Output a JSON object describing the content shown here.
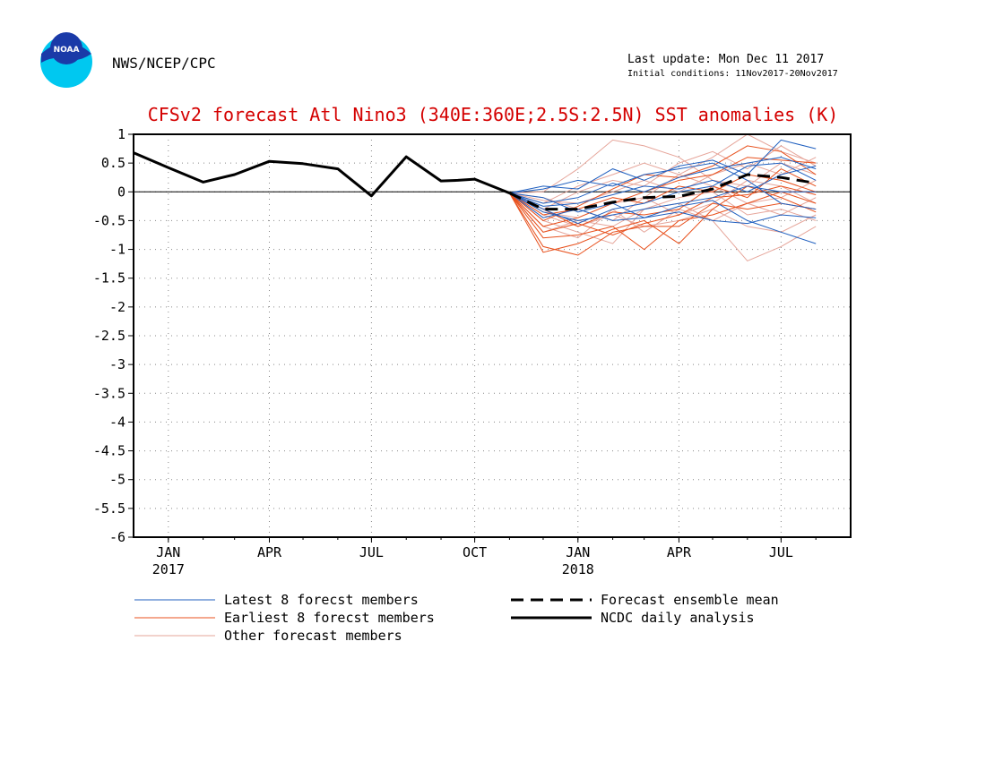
{
  "header": {
    "agency": "NWS/NCEP/CPC",
    "logo_text": "NOAA",
    "last_update": "Last update: Mon Dec 11 2017",
    "initial_conditions": "Initial conditions: 11Nov2017-20Nov2017"
  },
  "colors": {
    "title": "#d40000",
    "latest": "#1f5fbf",
    "earliest": "#e8501c",
    "other": "#e6a59a",
    "analysis": "#000000",
    "logo_blue": "#1a3aa8",
    "logo_cyan": "#00c8f0"
  },
  "chart_data": {
    "type": "line",
    "title": "CFSv2 forecast Atl Nino3 (340E:360E;2.5S:2.5N) SST anomalies (K)",
    "ylim": [
      -6,
      1
    ],
    "yticks": [
      1,
      0.5,
      0,
      -0.5,
      -1,
      -1.5,
      -2,
      -2.5,
      -3,
      -3.5,
      -4,
      -4.5,
      -5,
      -5.5,
      -6
    ],
    "ytick_labels": [
      "1",
      "0.5",
      "0",
      "-0.5",
      "-1",
      "-1.5",
      "-2",
      "-2.5",
      "-3",
      "-3.5",
      "-4",
      "-4.5",
      "-5",
      "-5.5",
      "-6"
    ],
    "xlim": [
      "2016-12-01",
      "2018-09-01"
    ],
    "xticks": [
      {
        "date": "2017-01-01",
        "label": "JAN",
        "sublabel": "2017"
      },
      {
        "date": "2017-04-01",
        "label": "APR",
        "sublabel": ""
      },
      {
        "date": "2017-07-01",
        "label": "JUL",
        "sublabel": ""
      },
      {
        "date": "2017-10-01",
        "label": "OCT",
        "sublabel": ""
      },
      {
        "date": "2018-01-01",
        "label": "JAN",
        "sublabel": "2018"
      },
      {
        "date": "2018-04-01",
        "label": "APR",
        "sublabel": ""
      },
      {
        "date": "2018-07-01",
        "label": "JUL",
        "sublabel": ""
      }
    ],
    "grid": true,
    "series": [
      {
        "name": "NCDC daily analysis",
        "style": "solid-thick",
        "color": "#000000",
        "x": [
          "2016-12-01",
          "2017-01-01",
          "2017-02-01",
          "2017-03-01",
          "2017-04-01",
          "2017-05-01",
          "2017-06-01",
          "2017-07-01",
          "2017-08-01",
          "2017-09-01",
          "2017-09-16",
          "2017-10-01",
          "2017-11-01"
        ],
        "y": [
          0.68,
          0.42,
          0.17,
          0.3,
          0.53,
          0.49,
          0.4,
          -0.07,
          0.61,
          0.19,
          0.2,
          0.22,
          -0.02
        ]
      },
      {
        "name": "Forecast ensemble mean",
        "style": "dashed-thick",
        "color": "#000000",
        "x": [
          "2017-11-01",
          "2017-12-01",
          "2018-01-01",
          "2018-02-01",
          "2018-03-01",
          "2018-04-01",
          "2018-05-01",
          "2018-06-01",
          "2018-07-01",
          "2018-08-01"
        ],
        "y": [
          -0.02,
          -0.3,
          -0.3,
          -0.18,
          -0.1,
          -0.08,
          0.05,
          0.3,
          0.25,
          0.15
        ]
      },
      {
        "name": "Latest 8 forecst members",
        "group": "latest",
        "color": "#1f5fbf",
        "x": [
          "2017-11-01",
          "2017-12-01",
          "2018-01-01",
          "2018-02-01",
          "2018-03-01",
          "2018-04-01",
          "2018-05-01",
          "2018-06-01",
          "2018-07-01",
          "2018-08-01"
        ],
        "members": [
          [
            -0.02,
            0.1,
            0.05,
            0.4,
            0.2,
            0.45,
            0.55,
            0.3,
            0.9,
            0.75
          ],
          [
            -0.02,
            -0.2,
            -0.1,
            0.15,
            0.0,
            0.25,
            0.4,
            0.5,
            0.6,
            0.4
          ],
          [
            -0.02,
            -0.35,
            -0.5,
            -0.4,
            -0.3,
            -0.2,
            -0.1,
            0.1,
            0.0,
            0.0
          ],
          [
            -0.02,
            -0.45,
            -0.3,
            -0.5,
            -0.45,
            -0.35,
            -0.5,
            -0.55,
            -0.4,
            -0.45
          ],
          [
            -0.02,
            -0.25,
            -0.2,
            -0.05,
            0.1,
            0.05,
            0.2,
            0.0,
            0.3,
            0.45
          ],
          [
            -0.02,
            -0.1,
            -0.35,
            -0.2,
            -0.45,
            -0.25,
            -0.15,
            -0.5,
            -0.7,
            -0.9
          ],
          [
            -0.02,
            -0.3,
            -0.55,
            -0.3,
            -0.2,
            0.0,
            0.1,
            0.45,
            0.5,
            0.2
          ],
          [
            -0.02,
            0.05,
            0.2,
            0.1,
            0.3,
            0.4,
            0.5,
            0.2,
            -0.2,
            -0.3
          ]
        ]
      },
      {
        "name": "Earliest 8 forecst members",
        "group": "earliest",
        "color": "#e8501c",
        "x": [
          "2017-11-01",
          "2017-12-01",
          "2018-01-01",
          "2018-02-01",
          "2018-03-01",
          "2018-04-01",
          "2018-05-01",
          "2018-06-01",
          "2018-07-01",
          "2018-08-01"
        ],
        "members": [
          [
            -0.02,
            -1.05,
            -0.9,
            -0.65,
            -0.5,
            -0.9,
            -0.3,
            0.1,
            -0.1,
            -0.35
          ],
          [
            -0.02,
            -0.8,
            -0.75,
            -0.6,
            -1.0,
            -0.5,
            -0.4,
            -0.2,
            0.0,
            -0.2
          ],
          [
            -0.02,
            -0.6,
            -0.45,
            -0.2,
            0.0,
            0.2,
            0.3,
            0.6,
            0.55,
            0.5
          ],
          [
            -0.02,
            -0.4,
            -0.3,
            -0.1,
            -0.2,
            0.1,
            0.0,
            0.3,
            0.2,
            0.0
          ],
          [
            -0.02,
            -0.7,
            -0.55,
            -0.75,
            -0.55,
            -0.4,
            -0.1,
            -0.05,
            0.1,
            -0.05
          ],
          [
            -0.02,
            -0.95,
            -1.1,
            -0.7,
            -0.6,
            -0.6,
            -0.2,
            -0.3,
            -0.2,
            -0.3
          ],
          [
            -0.02,
            -0.5,
            -0.25,
            0.05,
            0.3,
            0.25,
            0.45,
            0.8,
            0.7,
            0.3
          ],
          [
            -0.02,
            -0.3,
            -0.6,
            -0.35,
            -0.4,
            -0.3,
            0.1,
            -0.1,
            0.4,
            0.1
          ]
        ]
      },
      {
        "name": "Other forecast members",
        "group": "other",
        "color": "#e6a59a",
        "x": [
          "2017-11-01",
          "2017-12-01",
          "2018-01-01",
          "2018-02-01",
          "2018-03-01",
          "2018-04-01",
          "2018-05-01",
          "2018-06-01",
          "2018-07-01",
          "2018-08-01"
        ],
        "members": [
          [
            -0.02,
            0.0,
            0.4,
            0.9,
            0.8,
            0.6,
            0.2,
            0.1,
            0.5,
            0.3
          ],
          [
            -0.02,
            -0.2,
            0.1,
            0.3,
            0.5,
            0.3,
            0.6,
            1.0,
            0.7,
            0.5
          ],
          [
            -0.02,
            -0.5,
            -0.7,
            -0.9,
            -0.3,
            -0.2,
            -0.5,
            -1.2,
            -0.95,
            -0.6
          ],
          [
            -0.02,
            -0.4,
            -0.6,
            -0.4,
            -0.6,
            -0.5,
            -0.3,
            -0.6,
            -0.7,
            -0.4
          ],
          [
            -0.02,
            -0.1,
            -0.3,
            -0.5,
            -0.1,
            0.3,
            0.1,
            -0.2,
            -0.1,
            0.2
          ],
          [
            -0.02,
            -0.6,
            -0.8,
            -0.3,
            -0.7,
            -0.3,
            -0.5,
            -0.2,
            -0.4,
            -0.1
          ],
          [
            -0.02,
            -0.3,
            0.0,
            0.2,
            0.1,
            0.5,
            0.7,
            0.4,
            0.8,
            0.45
          ],
          [
            -0.02,
            -0.35,
            -0.45,
            -0.2,
            -0.1,
            -0.4,
            -0.2,
            0.2,
            0.1,
            -0.2
          ],
          [
            -0.02,
            -0.7,
            -0.5,
            -0.6,
            -0.3,
            -0.1,
            0.0,
            -0.4,
            -0.3,
            -0.5
          ],
          [
            -0.02,
            -0.15,
            -0.2,
            0.0,
            0.2,
            0.0,
            0.3,
            0.5,
            0.3,
            0.6
          ]
        ]
      }
    ],
    "legend": {
      "placement": "bottom",
      "entries": [
        {
          "label": "Latest 8 forecst members",
          "style": "thin",
          "color": "#1f5fbf"
        },
        {
          "label": "Earliest 8 forecst members",
          "style": "thin",
          "color": "#e8501c"
        },
        {
          "label": "Other forecast members",
          "style": "thin",
          "color": "#e6a59a"
        },
        {
          "label": "Forecast ensemble mean",
          "style": "dashed-thick",
          "color": "#000000"
        },
        {
          "label": "NCDC daily analysis",
          "style": "solid-thick",
          "color": "#000000"
        }
      ]
    }
  }
}
